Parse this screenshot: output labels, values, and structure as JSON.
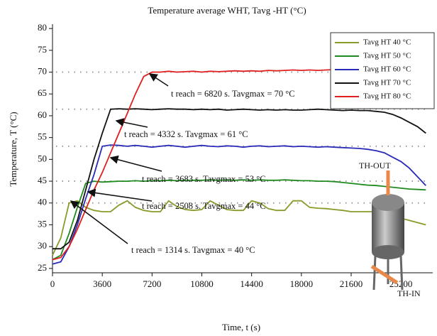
{
  "chart_data": {
    "type": "line",
    "title": "Temperature average WHT, Tavg -HT (°C)",
    "x_label": "Time, t (s)",
    "y_label": "Temperature, T (°C)",
    "x": [
      0,
      600,
      1200,
      1800,
      2400,
      3000,
      3600,
      4200,
      4800,
      5400,
      6000,
      6600,
      7200,
      7800,
      8400,
      9000,
      9600,
      10200,
      10800,
      11400,
      12000,
      12600,
      13200,
      13800,
      14400,
      15000,
      15600,
      16200,
      16800,
      17400,
      18000,
      18600,
      19200,
      19800,
      20400,
      21000,
      21600,
      22200,
      22800,
      23400,
      24000,
      24600,
      25200,
      25800,
      26400,
      27000
    ],
    "series": [
      {
        "name": "Tavg HT 40 °C",
        "color": "#8a9a2a",
        "values": [
          28,
          32,
          40,
          40.5,
          39,
          38.3,
          38,
          38,
          39.5,
          40.5,
          39,
          38.3,
          38,
          38,
          40.5,
          39.2,
          38.5,
          38.3,
          38.5,
          40.5,
          39.5,
          38.5,
          38.3,
          38.3,
          40.5,
          40,
          38.7,
          38.3,
          38.3,
          40.5,
          40.5,
          39,
          38.8,
          38.7,
          38.5,
          38.3,
          38,
          38,
          38,
          38,
          37.5,
          37,
          36.5,
          36,
          35.5,
          35
        ]
      },
      {
        "name": "Tavg HT 50 °C",
        "color": "#1f8a1f",
        "values": [
          27,
          28,
          33,
          39,
          44.5,
          45,
          44.8,
          44.9,
          45,
          45,
          45.1,
          45,
          45.1,
          45.1,
          45.2,
          45.1,
          45.2,
          45.2,
          45.2,
          45.3,
          45.2,
          45.3,
          45.2,
          45.3,
          45.2,
          45.3,
          45.2,
          45.2,
          45.3,
          45.2,
          45.1,
          45.1,
          45,
          45,
          44.9,
          44.7,
          44.5,
          44.3,
          44.1,
          44,
          43.8,
          43.6,
          43.4,
          43.2,
          43.1,
          43
        ]
      },
      {
        "name": "Tavg HT 60 °C",
        "color": "#2a2ab8",
        "values": [
          26,
          26.5,
          30,
          35,
          41,
          46.5,
          53,
          53.3,
          53.2,
          53,
          53.2,
          53,
          52.8,
          53,
          53.2,
          53,
          52.8,
          53,
          53.2,
          53,
          52.9,
          53.1,
          53,
          52.8,
          53,
          53.1,
          52.9,
          53,
          53.1,
          52.9,
          53,
          52.9,
          52.8,
          52.9,
          52.8,
          52.7,
          52.6,
          52.5,
          52.3,
          52,
          51.5,
          50.5,
          49.5,
          48,
          46,
          44
        ]
      },
      {
        "name": "Tavg HT 70 °C",
        "color": "#111111",
        "values": [
          29.5,
          29.5,
          31,
          36,
          43,
          50,
          56,
          61.5,
          61.6,
          61.5,
          61.6,
          61.5,
          61.4,
          61.5,
          61.6,
          61.5,
          61.5,
          61.4,
          61.5,
          61.4,
          61.5,
          61.3,
          61.4,
          61.5,
          61.4,
          61.3,
          61.4,
          61.3,
          61.4,
          61.3,
          61.3,
          61.4,
          61.5,
          61.4,
          61.3,
          61.2,
          61.3,
          61.2,
          61.2,
          61,
          60.8,
          60.3,
          59.5,
          58.5,
          57.5,
          56
        ]
      },
      {
        "name": "Tavg HT 80 °C",
        "color": "#e02020",
        "values": [
          27,
          27.5,
          30,
          34,
          38.5,
          43,
          47,
          51.5,
          56,
          60.5,
          65,
          69,
          70,
          70,
          70.2,
          70,
          70.1,
          70.2,
          70,
          70.2,
          70.1,
          70.2,
          70.3,
          70.2,
          70.3,
          70.2,
          70.4,
          70.3,
          70.4,
          70.5,
          70.4,
          70.5,
          70.4,
          70.5,
          70.6,
          70.5,
          70.6,
          70.5,
          70.4,
          70.3,
          70.2,
          70,
          69.8,
          69.6,
          69.3,
          69
        ]
      }
    ],
    "xlim": [
      0,
      27500
    ],
    "ylim": [
      24,
      81
    ],
    "xticks": [
      0,
      3600,
      7200,
      10800,
      14400,
      18000,
      21600,
      25200
    ],
    "yticks": [
      25,
      30,
      35,
      40,
      45,
      50,
      55,
      60,
      65,
      70,
      75,
      80
    ],
    "reference_lines": [
      70,
      61.5,
      53,
      45,
      40
    ],
    "annotations": [
      "t reach = 6820 s. Tavgmax = 70 °C",
      "t reach = 4332 s. Tavgmax = 61 °C",
      "t reach = 3683 s. Tavgmax = 53 °C",
      "t reach = 2508 s. Tavgmax = 44 °C",
      "t reach = 1314 s. Tavgmax = 40 °C"
    ],
    "figure_labels": [
      "TH-OUT",
      "TH-IN"
    ],
    "legend": "upper right"
  }
}
